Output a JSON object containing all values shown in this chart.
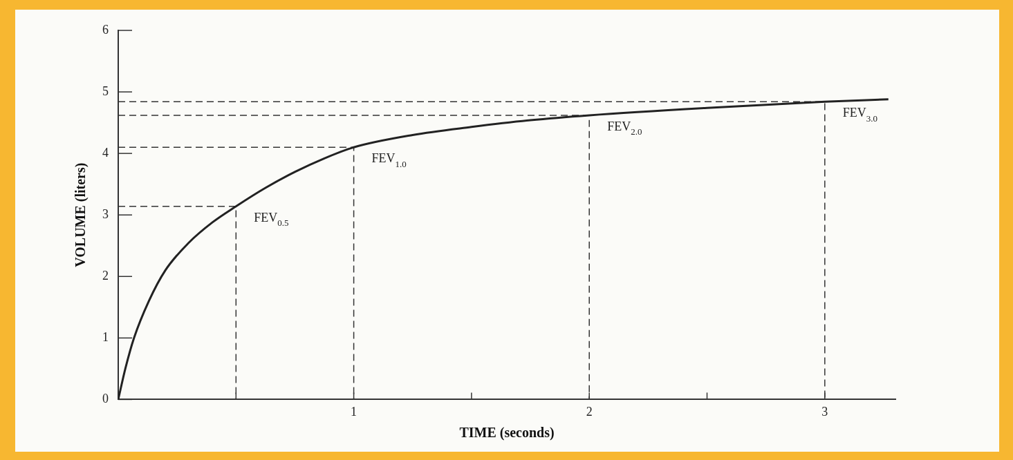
{
  "chart_data": {
    "type": "line",
    "xlabel": "TIME (seconds)",
    "ylabel": "VOLUME (liters)",
    "series": [
      {
        "x": [
          0,
          0.03,
          0.067,
          0.13,
          0.2,
          0.3,
          0.4,
          0.5,
          0.625,
          0.75,
          0.875,
          1,
          1.25,
          1.5,
          1.75,
          2,
          2.5,
          3,
          3.27
        ],
        "values": [
          0,
          0.5,
          1,
          1.6,
          2.1,
          2.55,
          2.88,
          3.14,
          3.44,
          3.7,
          3.92,
          4.1,
          4.3,
          4.43,
          4.54,
          4.62,
          4.74,
          4.84,
          4.88
        ],
        "color": "#222222",
        "line_style": "solid"
      },
      {
        "x": [
          0,
          0.5,
          0.5
        ],
        "values": [
          3.14,
          3.14,
          0
        ],
        "color": "#333333",
        "line_style": "dashed"
      },
      {
        "x": [
          0,
          1,
          1
        ],
        "values": [
          4.1,
          4.1,
          0
        ],
        "color": "#333333",
        "line_style": "dashed"
      },
      {
        "x": [
          0,
          2,
          2
        ],
        "values": [
          4.62,
          4.62,
          0
        ],
        "color": "#333333",
        "line_style": "dashed"
      },
      {
        "x": [
          0,
          3,
          3
        ],
        "values": [
          4.84,
          4.84,
          0
        ],
        "color": "#333333",
        "line_style": "dashed"
      }
    ],
    "marker": "none",
    "grid": false,
    "legend": false,
    "xlim": [
      0,
      3.3
    ],
    "xticks": [
      {
        "value": 0,
        "label": null
      },
      {
        "value": 0.5,
        "label": null
      },
      1,
      {
        "value": 1.5,
        "label": null
      },
      2,
      {
        "value": 2.5,
        "label": null
      },
      3
    ],
    "ylim": [
      0,
      6
    ],
    "yticks": [
      0,
      1,
      2,
      3,
      4,
      5,
      6
    ],
    "annotations": [
      {
        "text": "FEV$_{0.5}$",
        "x": 0.5,
        "y": 3.14
      },
      {
        "text": "FEV$_{1.0}$",
        "x": 1,
        "y": 4.1
      },
      {
        "text": "FEV$_{2.0}$",
        "x": 2,
        "y": 4.62
      },
      {
        "text": "FEV$_{3.0}$",
        "x": 3,
        "y": 4.84
      }
    ]
  }
}
